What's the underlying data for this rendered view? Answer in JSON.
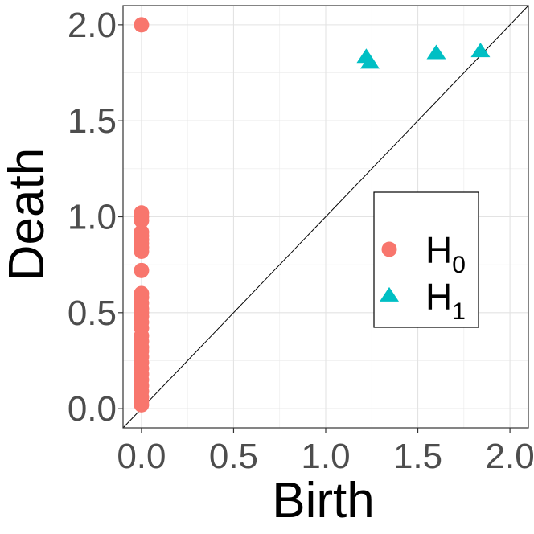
{
  "chart_data": {
    "type": "scatter",
    "title": "",
    "xlabel": "Birth",
    "ylabel": "Death",
    "xlim": [
      -0.1,
      2.1
    ],
    "ylim": [
      -0.1,
      2.1
    ],
    "xticks": [
      0.0,
      0.5,
      1.0,
      1.5,
      2.0
    ],
    "yticks": [
      0.0,
      0.5,
      1.0,
      1.5,
      2.0
    ],
    "xtick_labels": [
      "0.0",
      "0.5",
      "1.0",
      "1.5",
      "2.0"
    ],
    "ytick_labels": [
      "0.0",
      "0.5",
      "1.0",
      "1.5",
      "2.0"
    ],
    "grid": true,
    "diagonal_line": true,
    "legend_position": "center-right",
    "series": [
      {
        "name": "H0",
        "legend_main": "H",
        "legend_sub": "0",
        "marker": "circle",
        "color": "#F8766D",
        "points": [
          [
            0,
            2.0
          ],
          [
            0,
            1.02
          ],
          [
            0,
            1.0
          ],
          [
            0,
            0.98
          ],
          [
            0,
            0.92
          ],
          [
            0,
            0.9
          ],
          [
            0,
            0.88
          ],
          [
            0,
            0.86
          ],
          [
            0,
            0.84
          ],
          [
            0,
            0.82
          ],
          [
            0,
            0.72
          ],
          [
            0,
            0.6
          ],
          [
            0,
            0.58
          ],
          [
            0,
            0.55
          ],
          [
            0,
            0.52
          ],
          [
            0,
            0.5
          ],
          [
            0,
            0.48
          ],
          [
            0,
            0.45
          ],
          [
            0,
            0.42
          ],
          [
            0,
            0.38
          ],
          [
            0,
            0.35
          ],
          [
            0,
            0.32
          ],
          [
            0,
            0.3
          ],
          [
            0,
            0.27
          ],
          [
            0,
            0.24
          ],
          [
            0,
            0.21
          ],
          [
            0,
            0.18
          ],
          [
            0,
            0.15
          ],
          [
            0,
            0.12
          ],
          [
            0,
            0.09
          ],
          [
            0,
            0.06
          ],
          [
            0,
            0.04
          ],
          [
            0,
            0.02
          ]
        ]
      },
      {
        "name": "H1",
        "legend_main": "H",
        "legend_sub": "1",
        "marker": "triangle",
        "color": "#00BFC4",
        "points": [
          [
            1.22,
            1.83
          ],
          [
            1.24,
            1.8
          ],
          [
            1.6,
            1.85
          ],
          [
            1.84,
            1.86
          ]
        ]
      }
    ]
  }
}
